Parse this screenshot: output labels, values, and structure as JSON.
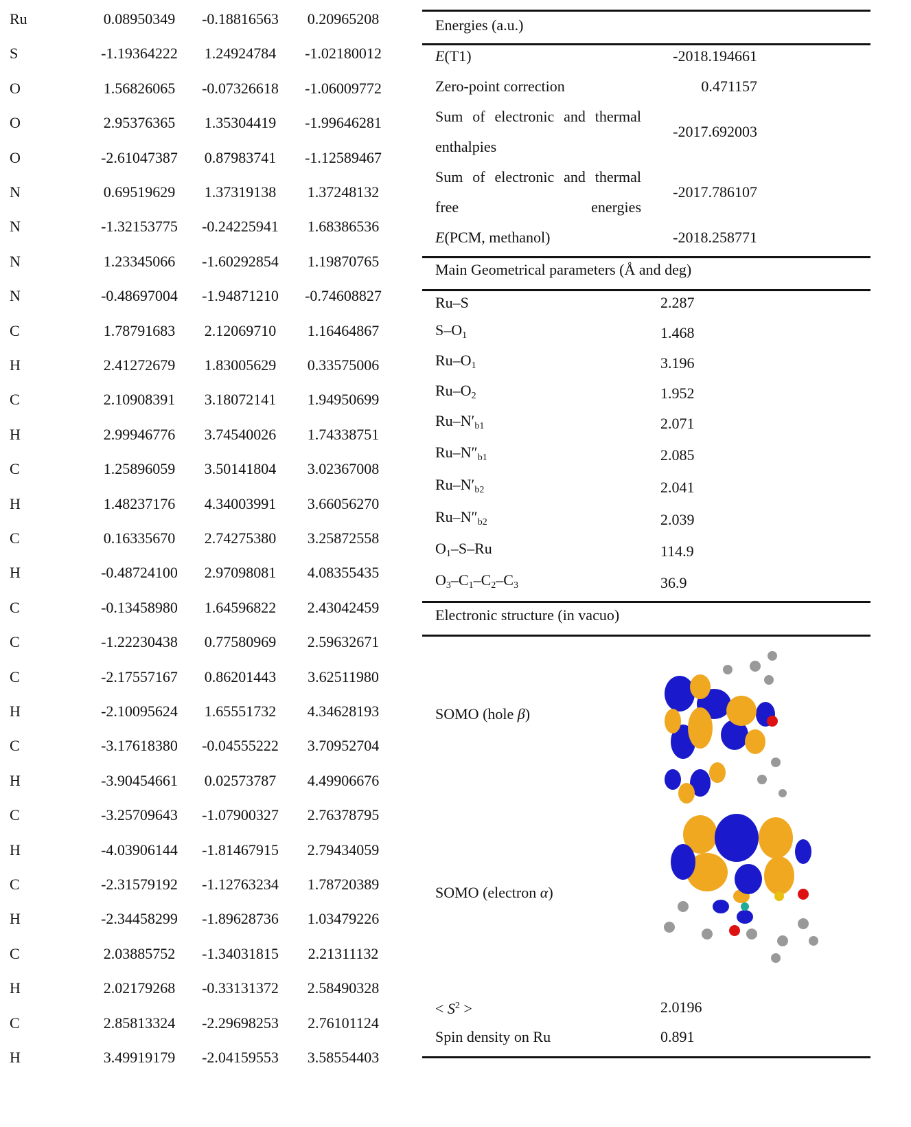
{
  "coordinates": {
    "rows": [
      [
        "Ru",
        "0.08950349",
        "-0.18816563",
        "0.20965208"
      ],
      [
        "S",
        "-1.19364222",
        "1.24924784",
        "-1.02180012"
      ],
      [
        "O",
        "1.56826065",
        "-0.07326618",
        "-1.06009772"
      ],
      [
        "O",
        "2.95376365",
        "1.35304419",
        "-1.99646281"
      ],
      [
        "O",
        "-2.61047387",
        "0.87983741",
        "-1.12589467"
      ],
      [
        "N",
        "0.69519629",
        "1.37319138",
        "1.37248132"
      ],
      [
        "N",
        "-1.32153775",
        "-0.24225941",
        "1.68386536"
      ],
      [
        "N",
        "1.23345066",
        "-1.60292854",
        "1.19870765"
      ],
      [
        "N",
        "-0.48697004",
        "-1.94871210",
        "-0.74608827"
      ],
      [
        "C",
        "1.78791683",
        "2.12069710",
        "1.16464867"
      ],
      [
        "H",
        "2.41272679",
        "1.83005629",
        "0.33575006"
      ],
      [
        "C",
        "2.10908391",
        "3.18072141",
        "1.94950699"
      ],
      [
        "H",
        "2.99946776",
        "3.74540026",
        "1.74338751"
      ],
      [
        "C",
        "1.25896059",
        "3.50141804",
        "3.02367008"
      ],
      [
        "H",
        "1.48237176",
        "4.34003991",
        "3.66056270"
      ],
      [
        "C",
        "0.16335670",
        "2.74275380",
        "3.25872558"
      ],
      [
        "H",
        "-0.48724100",
        "2.97098081",
        "4.08355435"
      ],
      [
        "C",
        "-0.13458980",
        "1.64596822",
        "2.43042459"
      ],
      [
        "C",
        "-1.22230438",
        "0.77580969",
        "2.59632671"
      ],
      [
        "C",
        "-2.17557167",
        "0.86201443",
        "3.62511980"
      ],
      [
        "H",
        "-2.10095624",
        "1.65551732",
        "4.34628193"
      ],
      [
        "C",
        "-3.17618380",
        "-0.04555222",
        "3.70952704"
      ],
      [
        "H",
        "-3.90454661",
        "0.02573787",
        "4.49906676"
      ],
      [
        "C",
        "-3.25709643",
        "-1.07900327",
        "2.76378795"
      ],
      [
        "H",
        "-4.03906144",
        "-1.81467915",
        "2.79434059"
      ],
      [
        "C",
        "-2.31579192",
        "-1.12763234",
        "1.78720389"
      ],
      [
        "H",
        "-2.34458299",
        "-1.89628736",
        "1.03479226"
      ],
      [
        "C",
        "2.03885752",
        "-1.34031815",
        "2.21311132"
      ],
      [
        "H",
        "2.02179268",
        "-0.33131372",
        "2.58490328"
      ],
      [
        "C",
        "2.85813324",
        "-2.29698253",
        "2.76101124"
      ],
      [
        "H",
        "3.49919179",
        "-2.04159553",
        "3.58554403"
      ]
    ]
  },
  "energies": {
    "heading": "Energies (a.u.)",
    "rows": [
      {
        "label": [
          "E",
          "(T1)"
        ],
        "value": "-2018.194661"
      },
      {
        "label": [
          "Zero-point correction"
        ],
        "value": "0.471157"
      },
      {
        "label": [
          "Sum of electronic and thermal enthalpies"
        ],
        "value": "-2017.692003"
      },
      {
        "label": [
          "Sum of electronic and thermal free energies"
        ],
        "value": "-2017.786107"
      },
      {
        "label": [
          "E",
          "(PCM, methanol)"
        ],
        "value": "-2018.258771"
      }
    ]
  },
  "geometry": {
    "heading": "Main Geometrical parameters (Å and deg)",
    "rows": [
      {
        "label": [
          "Ru–S"
        ],
        "value": "2.287"
      },
      {
        "label": [
          "S–O",
          "1"
        ],
        "value": "1.468"
      },
      {
        "label": [
          "Ru–O",
          "1"
        ],
        "value": "3.196"
      },
      {
        "label": [
          "Ru–O",
          "2"
        ],
        "value": "1.952"
      },
      {
        "label": [
          "Ru–N′",
          "b1"
        ],
        "value": "2.071"
      },
      {
        "label": [
          "Ru–N″",
          "b1"
        ],
        "value": "2.085"
      },
      {
        "label": [
          "Ru–N′",
          "b2"
        ],
        "value": "2.041"
      },
      {
        "label": [
          "Ru–N″",
          "b2"
        ],
        "value": "2.039"
      },
      {
        "label": [
          "O",
          "1",
          "–S–Ru"
        ],
        "value": "114.9"
      },
      {
        "label": [
          "O",
          "3",
          "–C",
          "1",
          "–C",
          "2",
          "–C",
          "3"
        ],
        "value": "36.9"
      }
    ]
  },
  "electronic": {
    "heading": "Electronic structure (in vacuo)",
    "rows": [
      {
        "label": [
          "SOMO (hole ",
          "β",
          ")"
        ]
      },
      {
        "label": [
          "SOMO (electron ",
          "α",
          ")"
        ]
      },
      {
        "label": [
          "< ",
          "S",
          "2",
          " >"
        ],
        "value": "2.0196"
      },
      {
        "label": [
          "Spin density on Ru"
        ],
        "value": "0.891"
      }
    ]
  }
}
